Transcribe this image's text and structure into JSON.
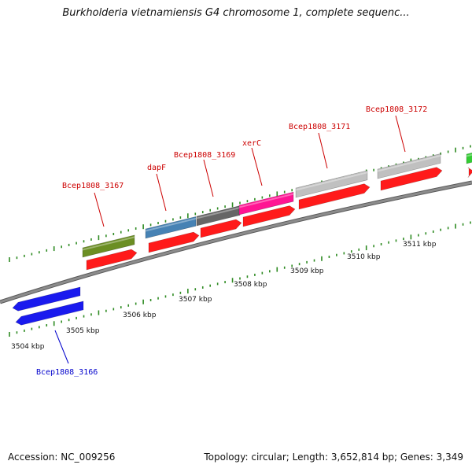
{
  "header": {
    "title": "Burkholderia vietnamiensis G4 chromosome 1, complete sequenc..."
  },
  "footer": {
    "accession": "Accession: NC_009256",
    "stats": "Topology: circular; Length: 3,652,814 bp; Genes: 3,349"
  },
  "colors": {
    "backbone": "#8c8c8c",
    "tick": "#2e8b22",
    "gene_label_forward": "#cc0000",
    "gene_label_reverse": "#0000cc",
    "cds_track": "#ff1a1a",
    "reverse_track": "#1a1aee"
  },
  "scale_labels": [
    "3504 kbp",
    "3505 kbp",
    "3506 kbp",
    "3507 kbp",
    "3508 kbp",
    "3509 kbp",
    "3510 kbp",
    "3511 kbp"
  ],
  "genes": [
    {
      "name": "Bcep1808_3166",
      "strand": "reverse",
      "color": "#1a1aee"
    },
    {
      "name": "Bcep1808_3167",
      "strand": "forward",
      "color": "#6b8e23"
    },
    {
      "name": "dapF",
      "strand": "forward",
      "color": "#4682b4"
    },
    {
      "name": "Bcep1808_3169",
      "strand": "forward",
      "color": "#666666"
    },
    {
      "name": "xerC",
      "strand": "forward",
      "color": "#ff1493"
    },
    {
      "name": "Bcep1808_3171",
      "strand": "forward",
      "color": "#c0c0c0"
    },
    {
      "name": "Bcep1808_3172",
      "strand": "forward",
      "color": "#c0c0c0"
    },
    {
      "name": "",
      "strand": "forward",
      "color": "#33cc33"
    }
  ]
}
